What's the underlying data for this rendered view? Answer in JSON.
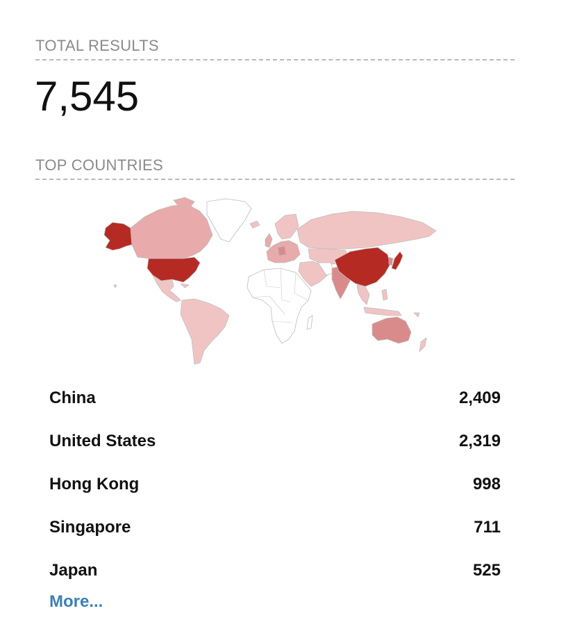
{
  "total_results": {
    "heading": "TOTAL RESULTS",
    "value": "7,545"
  },
  "top_countries": {
    "heading": "TOP COUNTRIES",
    "map": {
      "scale_colors": {
        "highest": "#b52a22",
        "high": "#d98b8b",
        "medium": "#e8aaaa",
        "low": "#f1c4c4",
        "none": "#ffffff"
      },
      "border_color": "#bdbdbd"
    },
    "countries": [
      {
        "name": "China",
        "count": "2,409"
      },
      {
        "name": "United States",
        "count": "2,319"
      },
      {
        "name": "Hong Kong",
        "count": "998"
      },
      {
        "name": "Singapore",
        "count": "711"
      },
      {
        "name": "Japan",
        "count": "525"
      }
    ],
    "more_label": "More..."
  }
}
